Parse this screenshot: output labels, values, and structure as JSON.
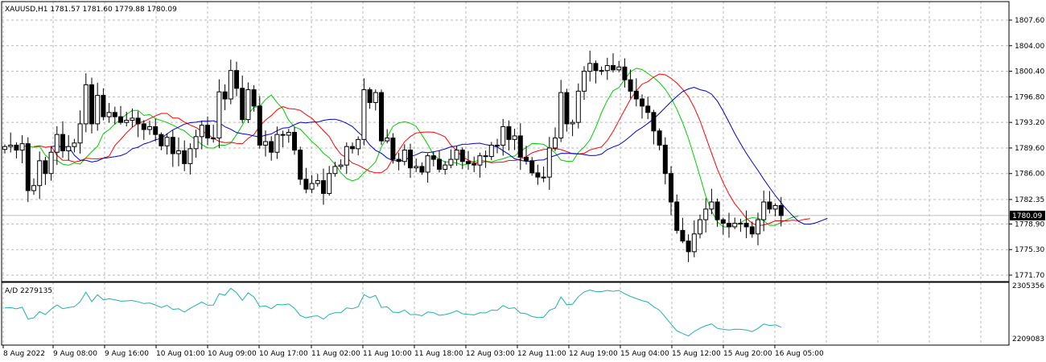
{
  "chart_data": [
    {
      "type": "candlestick",
      "title": "XAUUSD,H1",
      "ohlc_text": "1781.57 1781.60 1779.88 1780.09",
      "ylim": [
        1771.7,
        1809.3
      ],
      "y_ticks": [
        "1807.60",
        "1804.00",
        "1800.40",
        "1796.80",
        "1793.20",
        "1789.60",
        "1786.00",
        "1782.35",
        "1778.90",
        "1775.30",
        "1771.70"
      ],
      "current_price": "1780.09",
      "x_ticks": [
        "8 Aug 2022",
        "9 Aug 08:00",
        "9 Aug 16:00",
        "10 Aug 01:00",
        "10 Aug 09:00",
        "10 Aug 17:00",
        "11 Aug 02:00",
        "11 Aug 10:00",
        "11 Aug 18:00",
        "12 Aug 03:00",
        "12 Aug 11:00",
        "12 Aug 19:00",
        "15 Aug 04:00",
        "15 Aug 12:00",
        "15 Aug 20:00",
        "16 Aug 05:00"
      ],
      "closes": [
        1789.8,
        1790.0,
        1789.3,
        1790.2,
        1783.6,
        1784.3,
        1787.8,
        1786.0,
        1789.0,
        1791.5,
        1789.2,
        1789.8,
        1790.3,
        1793.0,
        1798.5,
        1793.0,
        1797.0,
        1794.0,
        1794.6,
        1794.0,
        1793.2,
        1793.5,
        1793.8,
        1793.0,
        1792.2,
        1792.6,
        1791.5,
        1789.9,
        1791.1,
        1788.8,
        1789.2,
        1787.4,
        1789.5,
        1791.2,
        1792.8,
        1791.0,
        1791.0,
        1797.5,
        1796.5,
        1800.5,
        1798.0,
        1793.6,
        1797.8,
        1795.5,
        1790.0,
        1790.5,
        1789.0,
        1791.5,
        1791.4,
        1791.8,
        1789.3,
        1785.2,
        1783.8,
        1784.6,
        1785.0,
        1783.2,
        1786.0,
        1787.0,
        1787.2,
        1789.8,
        1789.5,
        1790.8,
        1797.8,
        1796.0,
        1797.4,
        1790.6,
        1791.0,
        1788.0,
        1787.7,
        1789.3,
        1786.8,
        1787.0,
        1786.2,
        1788.5,
        1788.0,
        1786.6,
        1787.2,
        1788.0,
        1789.3,
        1787.7,
        1787.4,
        1787.2,
        1788.5,
        1788.4,
        1790.0,
        1790.0,
        1792.6,
        1790.8,
        1791.3,
        1788.3,
        1787.8,
        1786.1,
        1785.5,
        1785.5,
        1789.6,
        1791.0,
        1797.4,
        1793.0,
        1793.2,
        1797.6,
        1800.4,
        1801.5,
        1800.5,
        1800.5,
        1801.2,
        1800.6,
        1801.0,
        1799.2,
        1797.6,
        1796.5,
        1795.5,
        1794.6,
        1792.0,
        1790.0,
        1786.0,
        1782.0,
        1778.0,
        1776.5,
        1775.0,
        1777.5,
        1779.5,
        1781.0,
        1782.0,
        1779.5,
        1779.0,
        1778.5,
        1779.0,
        1779.0,
        1778.5,
        1777.5,
        1779.5,
        1782.0,
        1781.0,
        1781.5,
        1780.09
      ],
      "indicator": {
        "name": "A/D 2279135",
        "ylim": [
          2209083,
          2305356
        ],
        "y_ticks": [
          "2305356",
          "2209083"
        ]
      }
    }
  ]
}
